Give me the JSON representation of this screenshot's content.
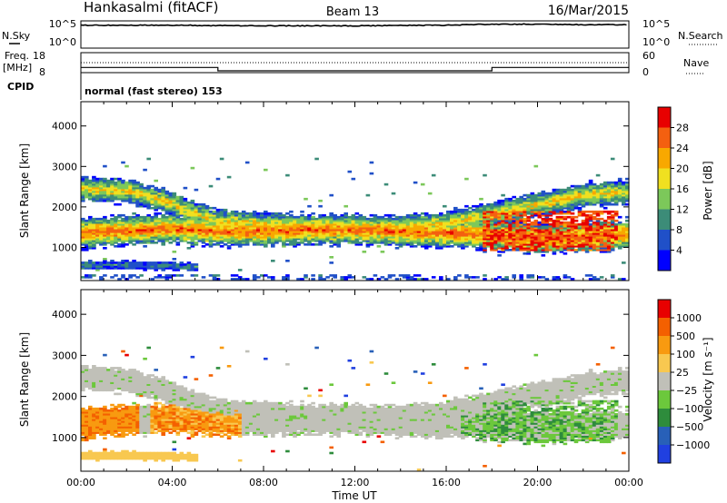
{
  "header": {
    "title": "Hankasalmi (fitACF)",
    "beam": "Beam 13",
    "date": "16/Mar/2015"
  },
  "strips": {
    "nsky": {
      "label": "N.Sky",
      "tick_top": "10^5",
      "tick_bottom": "10^0",
      "right_label": "N.Search",
      "right_tick_top": "10^5",
      "right_tick_bottom": "10^0"
    },
    "freq": {
      "label_line1": "Freq.",
      "label_line2": "[MHz]",
      "tick_top": "18",
      "tick_bottom": "8",
      "right_label": "Nave",
      "right_tick_top": "60",
      "right_tick_bottom": "0"
    },
    "cpid": {
      "label": "CPID",
      "text": "normal (fast stereo) 153"
    }
  },
  "colorbars": {
    "power": {
      "label": "Power [dB]",
      "ticks": [
        "28",
        "24",
        "20",
        "16",
        "12",
        "8",
        "4"
      ],
      "colors": [
        "#0000ff",
        "#2050c8",
        "#3c8c78",
        "#7cc85a",
        "#f0e020",
        "#f8a800",
        "#f46010",
        "#e80000"
      ]
    },
    "velocity": {
      "label": "Velocity [m s⁻¹]",
      "ticks": [
        "1000",
        "500",
        "100",
        "25",
        "−25",
        "−100",
        "−500",
        "−1000"
      ],
      "colors": [
        "#e80000",
        "#f46000",
        "#f89a10",
        "#f8c850",
        "#c0c0b8",
        "#6cc83c",
        "#2e8c3c",
        "#2860b8",
        "#2040e0"
      ]
    }
  },
  "chart_data": [
    {
      "type": "heatmap",
      "title": "Power",
      "ylabel": "Slant Range [km]",
      "xlabel": "Time UT",
      "x_ticks": [
        "00:00",
        "04:00",
        "08:00",
        "12:00",
        "16:00",
        "20:00",
        "00:00"
      ],
      "y_ticks": [
        "1000",
        "2000",
        "3000",
        "4000"
      ],
      "xlim": [
        0,
        24
      ],
      "ylim": [
        180,
        4600
      ],
      "zlim": [
        0,
        30
      ],
      "bands": [
        {
          "name": "far",
          "points": [
            [
              0,
              2420
            ],
            [
              2,
              2380
            ],
            [
              3.5,
              2150
            ],
            [
              5,
              1800
            ],
            [
              6,
              1620
            ],
            [
              8,
              1560
            ],
            [
              10,
              1490
            ],
            [
              12,
              1450
            ],
            [
              14,
              1480
            ],
            [
              16,
              1580
            ],
            [
              18,
              1800
            ],
            [
              20,
              2050
            ],
            [
              22,
              2280
            ],
            [
              24,
              2350
            ]
          ],
          "width": 260,
          "power": 18
        },
        {
          "name": "main",
          "points": [
            [
              0,
              1350
            ],
            [
              2,
              1400
            ],
            [
              4,
              1450
            ],
            [
              6,
              1380
            ],
            [
              8,
              1380
            ],
            [
              10,
              1420
            ],
            [
              12,
              1420
            ],
            [
              14,
              1380
            ],
            [
              16,
              1350
            ],
            [
              18,
              1280
            ],
            [
              20,
              1200
            ],
            [
              22,
              1250
            ],
            [
              24,
              1320
            ]
          ],
          "width": 320,
          "power": 24
        },
        {
          "name": "near",
          "points": [
            [
              0,
              540
            ],
            [
              2,
              540
            ],
            [
              4,
              520
            ],
            [
              5,
              500
            ]
          ],
          "width": 90,
          "power": 8
        }
      ]
    },
    {
      "type": "heatmap",
      "title": "Velocity",
      "ylabel": "Slant Range [km]",
      "xlabel": "Time UT",
      "x_ticks": [
        "00:00",
        "04:00",
        "08:00",
        "12:00",
        "16:00",
        "20:00",
        "00:00"
      ],
      "y_ticks": [
        "1000",
        "2000",
        "3000",
        "4000"
      ],
      "xlim": [
        0,
        24
      ],
      "ylim": [
        180,
        4600
      ],
      "zlim": [
        -1000,
        1000
      ]
    },
    {
      "type": "line",
      "title": "N.Sky",
      "x": [
        0,
        4,
        8,
        12,
        16,
        18,
        20,
        22,
        24
      ],
      "y": [
        4.2,
        4.2,
        4.1,
        4.1,
        4.2,
        4.4,
        4.4,
        4.3,
        4.3
      ],
      "ylim": [
        0,
        5
      ],
      "scale": "log10"
    },
    {
      "type": "line",
      "title": "Freq. [MHz]",
      "x": [
        0,
        6,
        6,
        18,
        18,
        24
      ],
      "y": [
        10.6,
        10.6,
        8.9,
        8.9,
        10.6,
        10.6
      ],
      "ylim": [
        8,
        18
      ]
    },
    {
      "type": "line",
      "title": "Nave",
      "x": [
        0,
        24
      ],
      "y": [
        30,
        30
      ],
      "ylim": [
        0,
        60
      ]
    }
  ]
}
